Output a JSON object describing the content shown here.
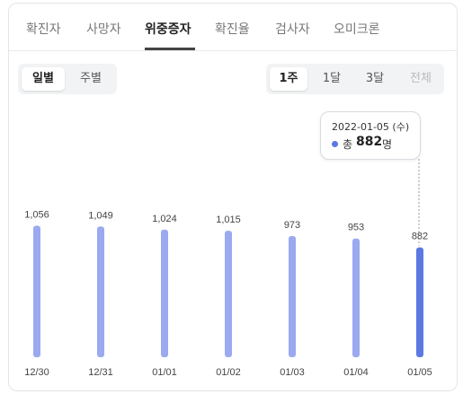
{
  "tabs": [
    {
      "label": "확진자"
    },
    {
      "label": "사망자"
    },
    {
      "label": "위중증자"
    },
    {
      "label": "확진율"
    },
    {
      "label": "검사자"
    },
    {
      "label": "오미크론"
    }
  ],
  "active_tab": "위중증자",
  "period_toggle": {
    "daily": "일별",
    "weekly": "주별",
    "selected": "일별"
  },
  "range_toggle": {
    "w1": "1주",
    "m1": "1달",
    "m3": "3달",
    "all": "전체",
    "selected": "1주"
  },
  "tooltip": {
    "date": "2022-01-05 (수)",
    "label": "총",
    "value": "882",
    "unit": "명"
  },
  "colors": {
    "bar": "#9aa9f0",
    "bar_highlight": "#5b78e3",
    "dot": "#5b78e3"
  },
  "chart_data": {
    "type": "bar",
    "categories": [
      "12/30",
      "12/31",
      "01/01",
      "01/02",
      "01/03",
      "01/04",
      "01/05"
    ],
    "values": [
      1056,
      1049,
      1024,
      1015,
      973,
      953,
      882
    ],
    "value_labels": [
      "1,056",
      "1,049",
      "1,024",
      "1,015",
      "973",
      "953",
      "882"
    ],
    "highlight_index": 6,
    "ylim": [
      0,
      1150
    ],
    "title": "",
    "xlabel": "",
    "ylabel": ""
  }
}
